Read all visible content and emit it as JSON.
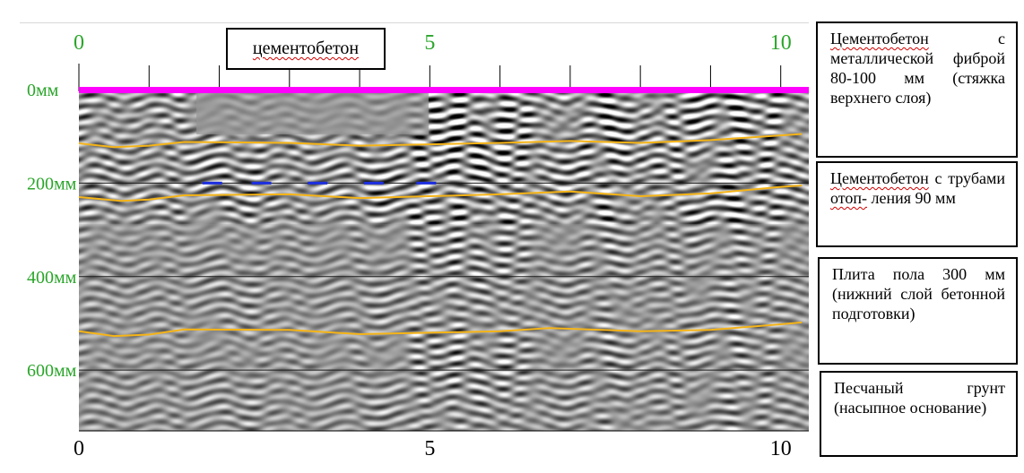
{
  "chart_data": {
    "type": "radargram",
    "x_axis": {
      "ticks_top": [
        "0",
        "5",
        "10"
      ],
      "ticks_bottom": [
        "0",
        "5",
        "10"
      ],
      "range": [
        0,
        10.4
      ],
      "top_color": "#2aa52a",
      "bottom_color": "#000000"
    },
    "y_axis": {
      "tick_labels": [
        "0мм",
        "200мм",
        "400мм",
        "600мм"
      ],
      "tick_values": [
        0,
        200,
        400,
        600
      ],
      "range": [
        0,
        730
      ],
      "unit": "мм"
    },
    "surface_line": {
      "depth": 0,
      "color": "#ff00ff"
    },
    "horizontal_grid_depths": [
      200,
      400,
      600
    ],
    "layer_boundaries": [
      {
        "name": "boundary-1",
        "color": "#f5b417",
        "points": [
          [
            0,
            115
          ],
          [
            0.5,
            123
          ],
          [
            1,
            120
          ],
          [
            1.5,
            112
          ],
          [
            3,
            114
          ],
          [
            4,
            120
          ],
          [
            5,
            117
          ],
          [
            6,
            114
          ],
          [
            7,
            110
          ],
          [
            8,
            114
          ],
          [
            9,
            108
          ],
          [
            10,
            98
          ],
          [
            10.3,
            95
          ]
        ]
      },
      {
        "name": "boundary-2",
        "color": "#f5b417",
        "points": [
          [
            0,
            230
          ],
          [
            0.6,
            238
          ],
          [
            1,
            235
          ],
          [
            1.5,
            226
          ],
          [
            3,
            224
          ],
          [
            4,
            232
          ],
          [
            5,
            228
          ],
          [
            6,
            224
          ],
          [
            7,
            218
          ],
          [
            8,
            228
          ],
          [
            9,
            222
          ],
          [
            10,
            208
          ],
          [
            10.3,
            205
          ]
        ]
      },
      {
        "name": "boundary-3",
        "color": "#f5b417",
        "points": [
          [
            0,
            517
          ],
          [
            0.5,
            527
          ],
          [
            1,
            524
          ],
          [
            1.5,
            513
          ],
          [
            3,
            514
          ],
          [
            4,
            523
          ],
          [
            5,
            520
          ],
          [
            6,
            517
          ],
          [
            6.7,
            510
          ],
          [
            8,
            517
          ],
          [
            9,
            514
          ],
          [
            10,
            502
          ],
          [
            10.3,
            498
          ]
        ]
      }
    ],
    "pipes": {
      "depth": 200,
      "x": [
        1.9,
        2.6,
        3.4,
        4.2,
        4.95
      ],
      "color": "#1c2ee0"
    },
    "center_annotation": "цементобетон",
    "layers": [
      {
        "underlined": "Цементобетон",
        "rest": " с металлической фиброй 80-100 мм (стяжка верхнего слоя)"
      },
      {
        "underlined": "Цементобетон",
        "rest": " с трубами ",
        "underlined2": "отоп-",
        "rest2": " ления 90 мм"
      },
      {
        "underlined": "",
        "rest": "Плита пола 300 мм (нижний слой бетонной подготовки)"
      },
      {
        "underlined": "",
        "rest": "Песчаный грунт (насыпное основание)"
      }
    ]
  }
}
